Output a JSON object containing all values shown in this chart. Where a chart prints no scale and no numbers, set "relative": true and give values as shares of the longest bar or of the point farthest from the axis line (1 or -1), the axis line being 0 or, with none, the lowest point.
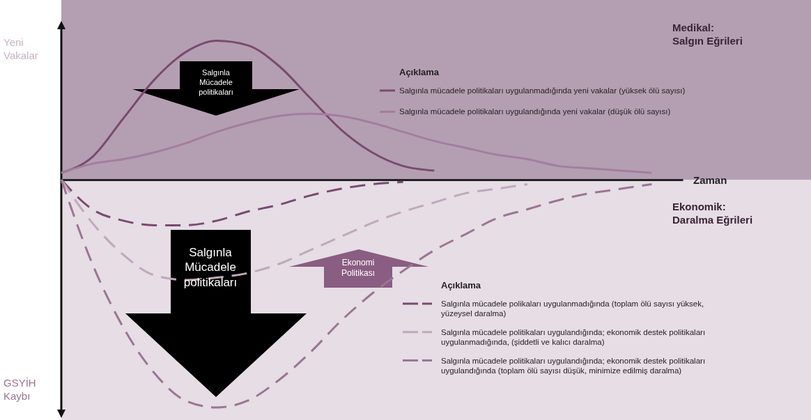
{
  "chart_data": {
    "type": "line",
    "relative": true,
    "title": "Medikal: Salgın Eğrileri",
    "subtitle": "Ekonomik: Daralma Eğrileri",
    "xlabel": "Zaman",
    "ylabel": "Yeni Vakalar",
    "legend_title": "Açıklama",
    "legend": "right",
    "marker": "none",
    "categories": [
      null,
      null,
      null,
      null,
      null,
      null,
      null,
      null,
      null,
      null,
      null,
      null,
      null,
      null,
      null,
      null,
      null,
      null,
      null,
      null,
      null
    ],
    "series": [
      {
        "name": "Salgınla mücadele politikaları uygulanmadığında yeni vakalar (yüksek ölü sayısı)",
        "color": "#7a4a70",
        "line_style": "solid",
        "values": [
          0.03,
          0.1,
          0.27,
          0.44,
          0.56,
          0.61,
          0.59,
          0.5,
          0.36,
          0.22,
          0.12,
          0.06,
          0.04,
          null,
          null,
          null,
          null,
          null,
          null,
          null,
          null
        ]
      },
      {
        "name": "Salgınla mücadele politikaları uygulandığında yeni vakalar (düşük ölü sayısı)",
        "color": "#a47d9e",
        "line_style": "solid",
        "values": [
          0.03,
          0.07,
          0.09,
          0.12,
          0.16,
          0.21,
          0.25,
          0.28,
          0.29,
          0.28,
          0.25,
          0.21,
          0.17,
          0.14,
          0.11,
          0.09,
          0.06,
          0.05,
          0.04,
          0.03,
          null
        ]
      },
      {
        "name": "Salgınla mücadele polikaları uygulanmadığında (toplam ölü sayısı yüksek, yüzeysel daralma)",
        "color": "#7a4a70",
        "line_style": "dashed",
        "values": [
          0,
          -0.13,
          -0.18,
          -0.2,
          -0.2,
          -0.18,
          -0.14,
          -0.11,
          -0.07,
          -0.04,
          -0.02,
          -0.01,
          null,
          null,
          null,
          null,
          null,
          null,
          null,
          null,
          null
        ]
      },
      {
        "name": "Salgınla mücadele politikaları uygulandığında; ekonomik destek politikaları uygulanmadığında, (şiddetli ve kalıcı daralma)",
        "color": "#c0a8bc",
        "line_style": "dashed",
        "values": [
          0,
          -0.19,
          -0.33,
          -0.42,
          -0.44,
          -0.43,
          -0.41,
          -0.37,
          -0.31,
          -0.25,
          -0.19,
          -0.14,
          -0.1,
          -0.06,
          -0.04,
          -0.02,
          null,
          null,
          null,
          null,
          null
        ]
      },
      {
        "name": "Salgınla mücadele politikaları uygulandığında; ekonomik destek politikaları uygulandığında (toplam ölü sayısı düşük, minimize edilmiş daralma)",
        "color": "#9b7594",
        "line_style": "dashed",
        "values": [
          0,
          -0.37,
          -0.65,
          -0.85,
          -0.97,
          -1,
          -0.97,
          -0.88,
          -0.76,
          -0.62,
          -0.5,
          -0.4,
          -0.31,
          -0.24,
          -0.17,
          -0.13,
          -0.09,
          -0.06,
          -0.04,
          -0.02,
          null
        ]
      }
    ],
    "annotations": [
      "Salgınla Mücadele politikaları",
      "Salgınla Mücadele politikaları",
      "Ekonomi Politikası",
      "GSYİH Kaybı"
    ]
  }
}
